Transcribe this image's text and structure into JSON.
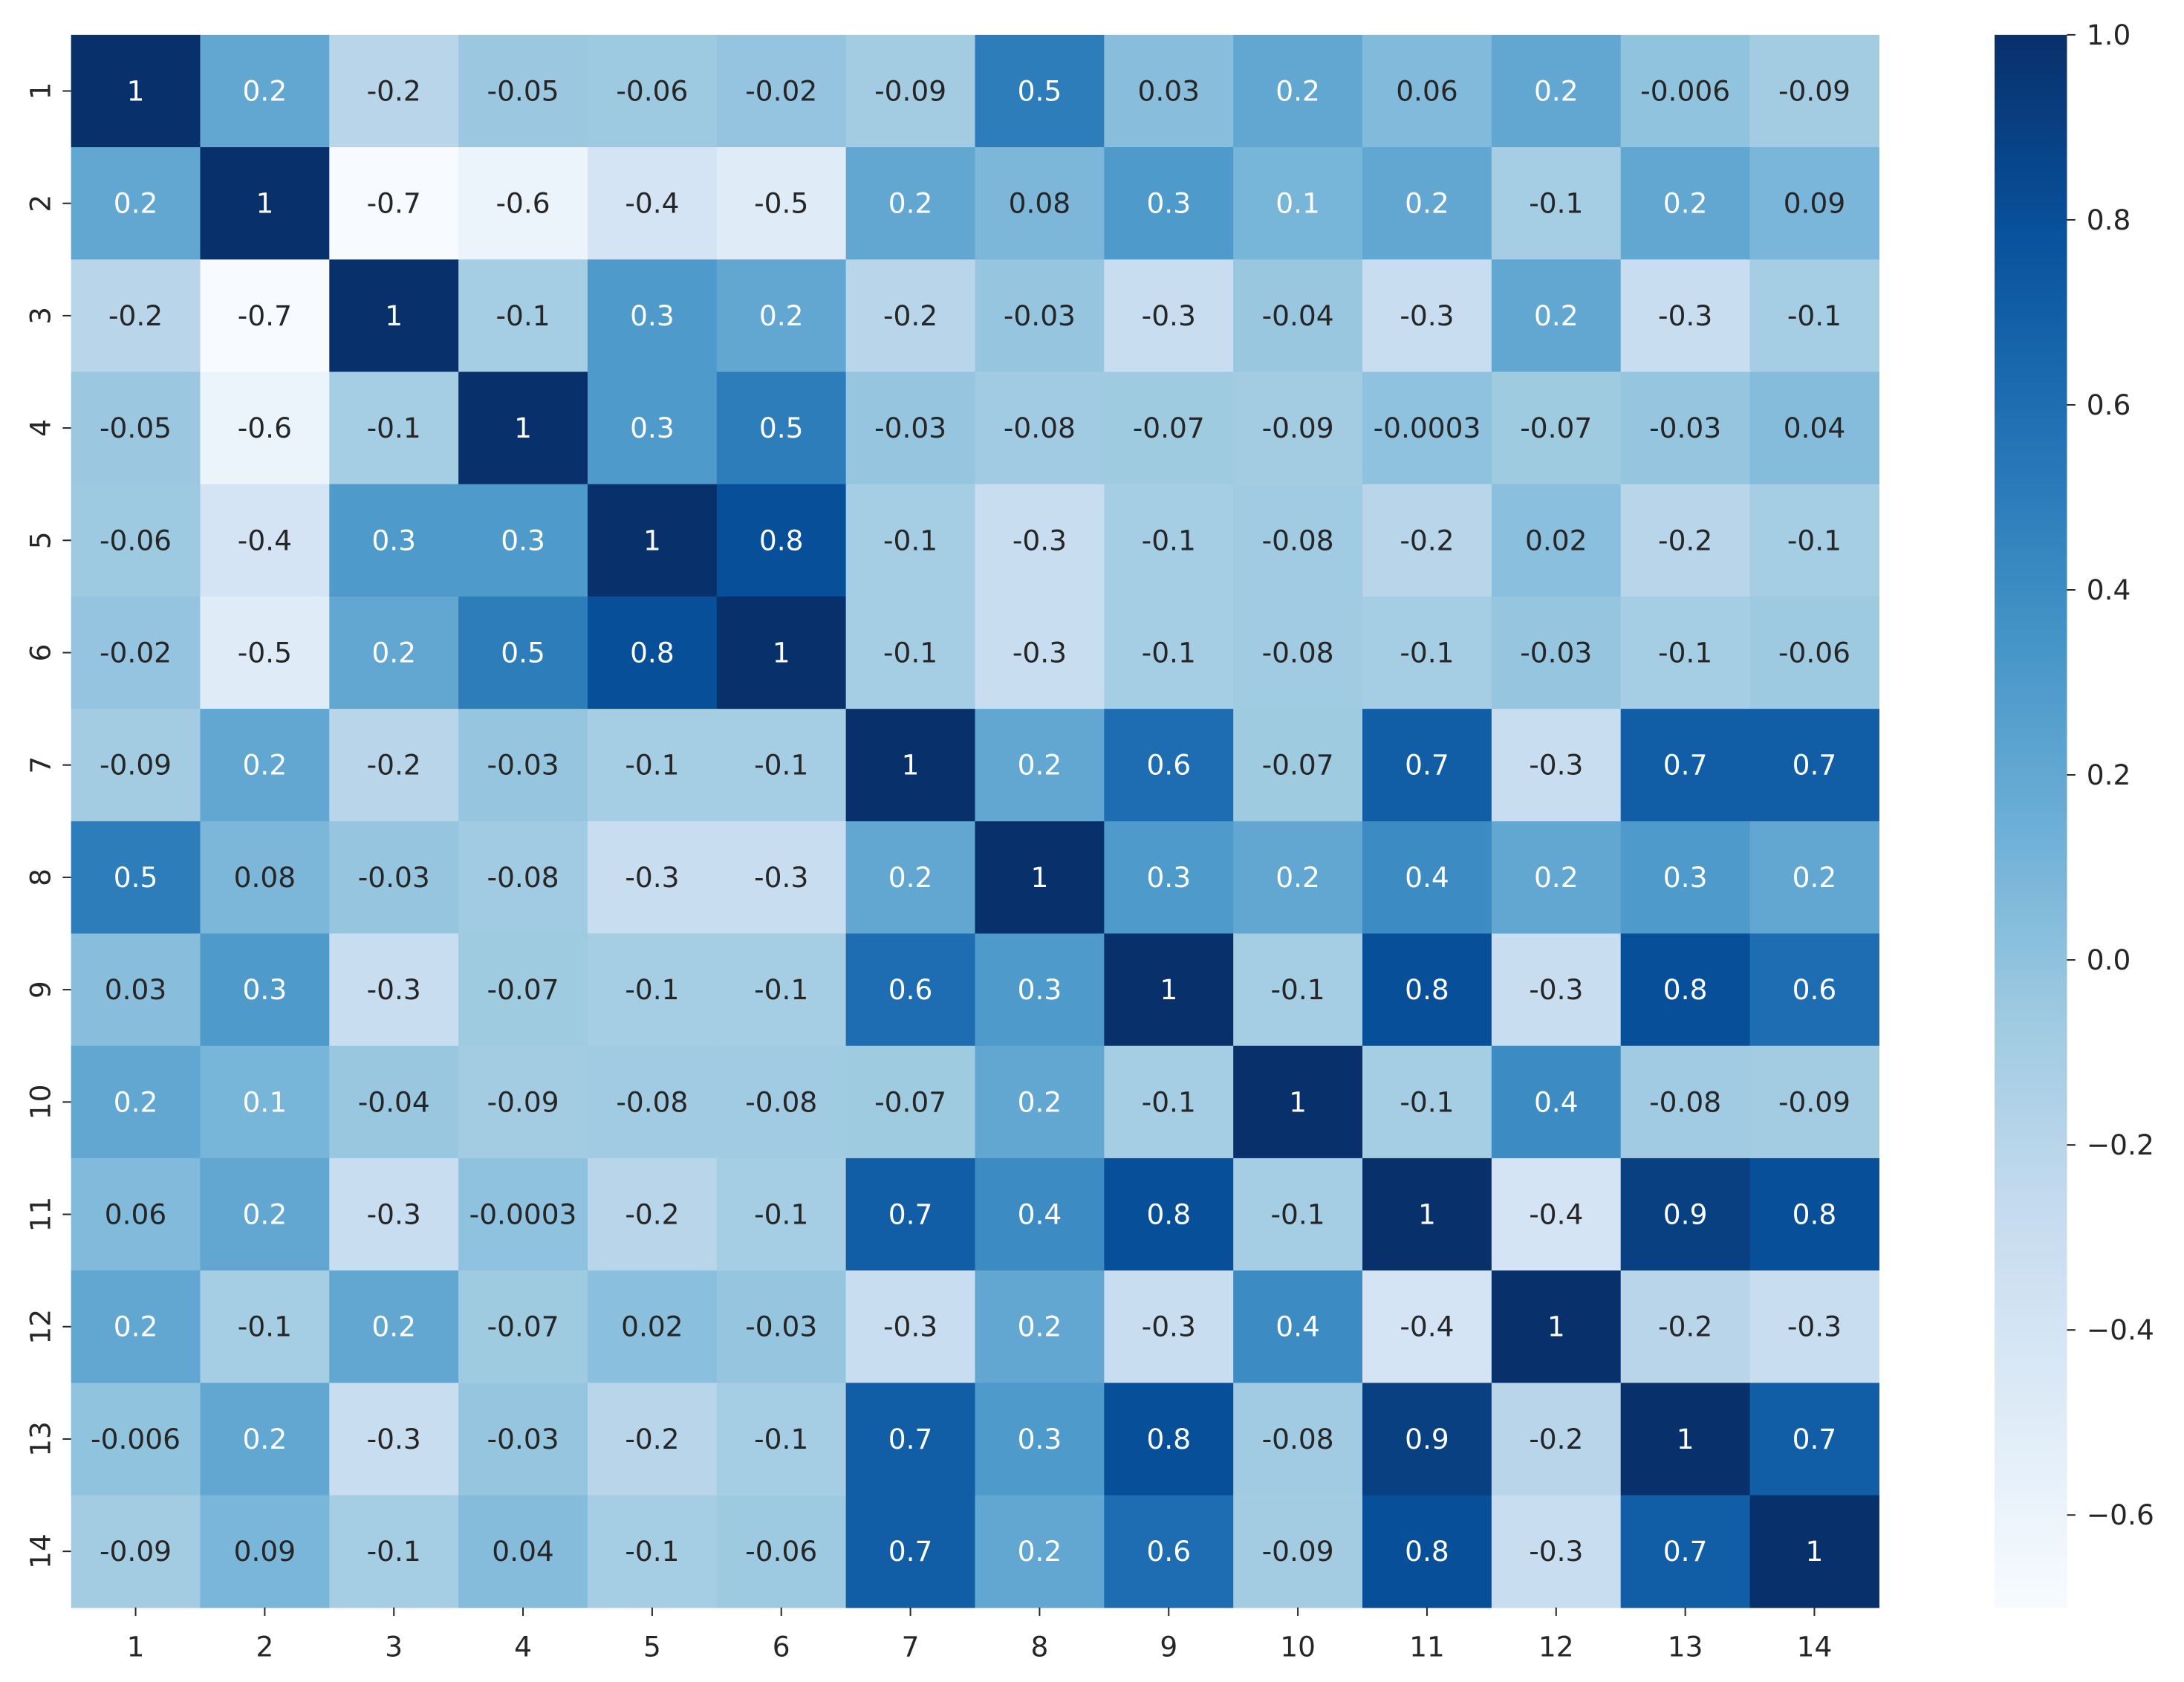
{
  "chart_data": {
    "type": "heatmap",
    "title": "",
    "xlabel": "",
    "ylabel": "",
    "x_categories": [
      "1",
      "2",
      "3",
      "4",
      "5",
      "6",
      "7",
      "8",
      "9",
      "10",
      "11",
      "12",
      "13",
      "14"
    ],
    "y_categories": [
      "1",
      "2",
      "3",
      "4",
      "5",
      "6",
      "7",
      "8",
      "9",
      "10",
      "11",
      "12",
      "13",
      "14"
    ],
    "values": [
      [
        "1",
        "0.2",
        "-0.2",
        "-0.05",
        "-0.06",
        "-0.02",
        "-0.09",
        "0.5",
        "0.03",
        "0.2",
        "0.06",
        "0.2",
        "-0.006",
        "-0.09"
      ],
      [
        "0.2",
        "1",
        "-0.7",
        "-0.6",
        "-0.4",
        "-0.5",
        "0.2",
        "0.08",
        "0.3",
        "0.1",
        "0.2",
        "-0.1",
        "0.2",
        "0.09"
      ],
      [
        "-0.2",
        "-0.7",
        "1",
        "-0.1",
        "0.3",
        "0.2",
        "-0.2",
        "-0.03",
        "-0.3",
        "-0.04",
        "-0.3",
        "0.2",
        "-0.3",
        "-0.1"
      ],
      [
        "-0.05",
        "-0.6",
        "-0.1",
        "1",
        "0.3",
        "0.5",
        "-0.03",
        "-0.08",
        "-0.07",
        "-0.09",
        "-0.0003",
        "-0.07",
        "-0.03",
        "0.04"
      ],
      [
        "-0.06",
        "-0.4",
        "0.3",
        "0.3",
        "1",
        "0.8",
        "-0.1",
        "-0.3",
        "-0.1",
        "-0.08",
        "-0.2",
        "0.02",
        "-0.2",
        "-0.1"
      ],
      [
        "-0.02",
        "-0.5",
        "0.2",
        "0.5",
        "0.8",
        "1",
        "-0.1",
        "-0.3",
        "-0.1",
        "-0.08",
        "-0.1",
        "-0.03",
        "-0.1",
        "-0.06"
      ],
      [
        "-0.09",
        "0.2",
        "-0.2",
        "-0.03",
        "-0.1",
        "-0.1",
        "1",
        "0.2",
        "0.6",
        "-0.07",
        "0.7",
        "-0.3",
        "0.7",
        "0.7"
      ],
      [
        "0.5",
        "0.08",
        "-0.03",
        "-0.08",
        "-0.3",
        "-0.3",
        "0.2",
        "1",
        "0.3",
        "0.2",
        "0.4",
        "0.2",
        "0.3",
        "0.2"
      ],
      [
        "0.03",
        "0.3",
        "-0.3",
        "-0.07",
        "-0.1",
        "-0.1",
        "0.6",
        "0.3",
        "1",
        "-0.1",
        "0.8",
        "-0.3",
        "0.8",
        "0.6"
      ],
      [
        "0.2",
        "0.1",
        "-0.04",
        "-0.09",
        "-0.08",
        "-0.08",
        "-0.07",
        "0.2",
        "-0.1",
        "1",
        "-0.1",
        "0.4",
        "-0.08",
        "-0.09"
      ],
      [
        "0.06",
        "0.2",
        "-0.3",
        "-0.0003",
        "-0.2",
        "-0.1",
        "0.7",
        "0.4",
        "0.8",
        "-0.1",
        "1",
        "-0.4",
        "0.9",
        "0.8"
      ],
      [
        "0.2",
        "-0.1",
        "0.2",
        "-0.07",
        "0.02",
        "-0.03",
        "-0.3",
        "0.2",
        "-0.3",
        "0.4",
        "-0.4",
        "1",
        "-0.2",
        "-0.3"
      ],
      [
        "-0.006",
        "0.2",
        "-0.3",
        "-0.03",
        "-0.2",
        "-0.1",
        "0.7",
        "0.3",
        "0.8",
        "-0.08",
        "0.9",
        "-0.2",
        "1",
        "0.7"
      ],
      [
        "-0.09",
        "0.09",
        "-0.1",
        "0.04",
        "-0.1",
        "-0.06",
        "0.7",
        "0.2",
        "0.6",
        "-0.09",
        "0.8",
        "-0.3",
        "0.7",
        "1"
      ]
    ],
    "colorbar": {
      "range": [
        -0.7,
        1.0
      ],
      "ticks": [
        1.0,
        0.8,
        0.6,
        0.4,
        0.2,
        0.0,
        -0.2,
        -0.4,
        -0.6
      ],
      "tick_labels": [
        "1.0",
        "0.8",
        "0.6",
        "0.4",
        "0.2",
        "0.0",
        "−0.2",
        "−0.4",
        "−0.6"
      ]
    },
    "colormap": "Blues",
    "colormap_stops": [
      "#f7fbff",
      "#deebf7",
      "#c6dbef",
      "#9ecae1",
      "#6baed6",
      "#4292c6",
      "#2171b5",
      "#08519c",
      "#08306b"
    ],
    "annotation_light_color": "#ffffff",
    "annotation_dark_color": "#262626",
    "tick_color": "#262626",
    "grid": false
  }
}
